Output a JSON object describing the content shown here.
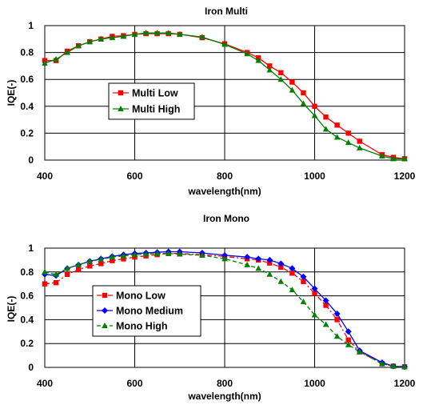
{
  "chart_data": [
    {
      "type": "line",
      "title": "Iron Multi",
      "xlabel": "wavelength(nm)",
      "ylabel": "IQE(-)",
      "xlim": [
        400,
        1200
      ],
      "ylim": [
        0,
        1
      ],
      "xticks": [
        400,
        600,
        800,
        1000,
        1200
      ],
      "yticks": [
        0,
        0.2,
        0.4,
        0.6,
        0.8,
        1
      ],
      "xtick_labels": [
        "400",
        "600",
        "800",
        "1000",
        "1200"
      ],
      "ytick_labels": [
        "0",
        "0.2",
        "0.4",
        "0.6",
        "0.8",
        "1"
      ],
      "grid": true,
      "legend": "middle-left",
      "series": [
        {
          "name": "Multi Low",
          "color": "#ff0000",
          "marker": "square",
          "dash": "solid",
          "x": [
            400,
            425,
            450,
            475,
            500,
            525,
            550,
            575,
            600,
            625,
            650,
            675,
            700,
            750,
            800,
            850,
            875,
            900,
            925,
            950,
            975,
            1000,
            1025,
            1050,
            1075,
            1100,
            1150,
            1175,
            1200
          ],
          "y": [
            0.74,
            0.74,
            0.81,
            0.85,
            0.88,
            0.9,
            0.92,
            0.925,
            0.935,
            0.94,
            0.94,
            0.94,
            0.935,
            0.91,
            0.865,
            0.8,
            0.76,
            0.7,
            0.65,
            0.58,
            0.5,
            0.4,
            0.32,
            0.26,
            0.2,
            0.14,
            0.04,
            0.02,
            0.01
          ]
        },
        {
          "name": "Multi High",
          "color": "#008000",
          "marker": "triangle",
          "dash": "solid",
          "x": [
            400,
            425,
            450,
            475,
            500,
            525,
            550,
            575,
            600,
            625,
            650,
            675,
            700,
            750,
            800,
            850,
            875,
            900,
            925,
            950,
            975,
            1000,
            1025,
            1050,
            1075,
            1100,
            1150,
            1175,
            1200
          ],
          "y": [
            0.72,
            0.75,
            0.8,
            0.85,
            0.88,
            0.9,
            0.91,
            0.92,
            0.935,
            0.945,
            0.945,
            0.945,
            0.935,
            0.915,
            0.86,
            0.79,
            0.74,
            0.67,
            0.6,
            0.52,
            0.42,
            0.33,
            0.23,
            0.17,
            0.13,
            0.09,
            0.03,
            0.01,
            0.01
          ]
        }
      ]
    },
    {
      "type": "line",
      "title": "Iron Mono",
      "xlabel": "wavelength(nm)",
      "ylabel": "IQE(-)",
      "xlim": [
        400,
        1200
      ],
      "ylim": [
        0,
        1
      ],
      "xticks": [
        400,
        600,
        800,
        1000,
        1200
      ],
      "yticks": [
        0,
        0.2,
        0.4,
        0.6,
        0.8,
        1
      ],
      "xtick_labels": [
        "400",
        "600",
        "800",
        "1000",
        "1200"
      ],
      "ytick_labels": [
        "0",
        "0.2",
        "0.4",
        "0.6",
        "0.8",
        "1"
      ],
      "grid": true,
      "legend": "bottom-left",
      "series": [
        {
          "name": "Mono Low",
          "color": "#ff0000",
          "marker": "square",
          "dash": "dashdot",
          "x": [
            400,
            425,
            450,
            475,
            500,
            525,
            550,
            575,
            600,
            625,
            650,
            675,
            700,
            750,
            800,
            850,
            875,
            900,
            925,
            950,
            975,
            1000,
            1025,
            1050,
            1075,
            1100,
            1150,
            1175,
            1200
          ],
          "y": [
            0.7,
            0.71,
            0.78,
            0.82,
            0.85,
            0.87,
            0.895,
            0.91,
            0.925,
            0.935,
            0.945,
            0.955,
            0.955,
            0.945,
            0.93,
            0.91,
            0.9,
            0.875,
            0.84,
            0.79,
            0.72,
            0.62,
            0.52,
            0.4,
            0.23,
            0.13,
            0.03,
            0.01,
            0.005
          ]
        },
        {
          "name": "Mono Medium",
          "color": "#0000ff",
          "marker": "diamond",
          "dash": "solid",
          "x": [
            400,
            425,
            450,
            475,
            500,
            525,
            550,
            575,
            600,
            625,
            650,
            675,
            700,
            750,
            800,
            850,
            875,
            900,
            925,
            950,
            975,
            1000,
            1025,
            1050,
            1075,
            1100,
            1150,
            1175,
            1200
          ],
          "y": [
            0.78,
            0.77,
            0.83,
            0.86,
            0.89,
            0.91,
            0.93,
            0.945,
            0.955,
            0.96,
            0.965,
            0.97,
            0.97,
            0.96,
            0.94,
            0.925,
            0.91,
            0.9,
            0.87,
            0.83,
            0.76,
            0.66,
            0.56,
            0.45,
            0.3,
            0.14,
            0.04,
            0.01,
            0.005
          ]
        },
        {
          "name": "Mono High",
          "color": "#008000",
          "marker": "triangle",
          "dash": "dashed",
          "x": [
            400,
            425,
            450,
            475,
            500,
            525,
            550,
            575,
            600,
            625,
            650,
            675,
            700,
            750,
            800,
            850,
            875,
            900,
            925,
            950,
            975,
            1000,
            1025,
            1050,
            1075,
            1100,
            1150,
            1175,
            1200
          ],
          "y": [
            0.8,
            0.78,
            0.83,
            0.86,
            0.89,
            0.905,
            0.925,
            0.935,
            0.945,
            0.95,
            0.955,
            0.955,
            0.95,
            0.94,
            0.91,
            0.86,
            0.83,
            0.78,
            0.72,
            0.65,
            0.55,
            0.44,
            0.36,
            0.26,
            0.19,
            0.13,
            0.03,
            0.01,
            0.005
          ]
        }
      ]
    }
  ]
}
